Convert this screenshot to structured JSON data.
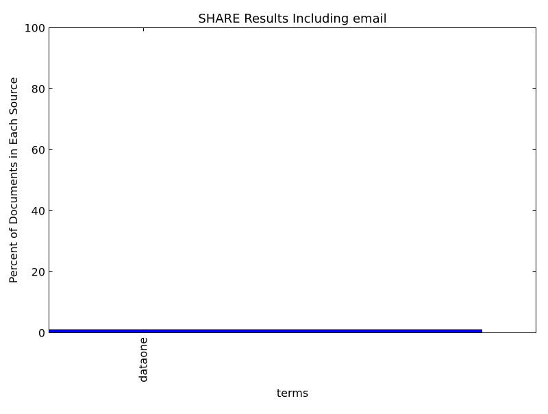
{
  "chart_data": {
    "type": "bar",
    "title": "SHARE Results Including email",
    "xlabel": "terms",
    "ylabel": "Percent of Documents in Each Source",
    "categories": [
      "dataone"
    ],
    "series": [
      {
        "values": [
          1
        ]
      }
    ],
    "ylim": [
      0,
      100
    ],
    "yticks": [
      "0",
      "20",
      "40",
      "60",
      "80",
      "100"
    ],
    "xtick_rotation": "vertical",
    "grid": false,
    "legend": "none",
    "colors": {
      "bar_fill": "#0000ff",
      "bar_edge": "#000000",
      "axes": "#000000",
      "background": "#ffffff"
    }
  }
}
